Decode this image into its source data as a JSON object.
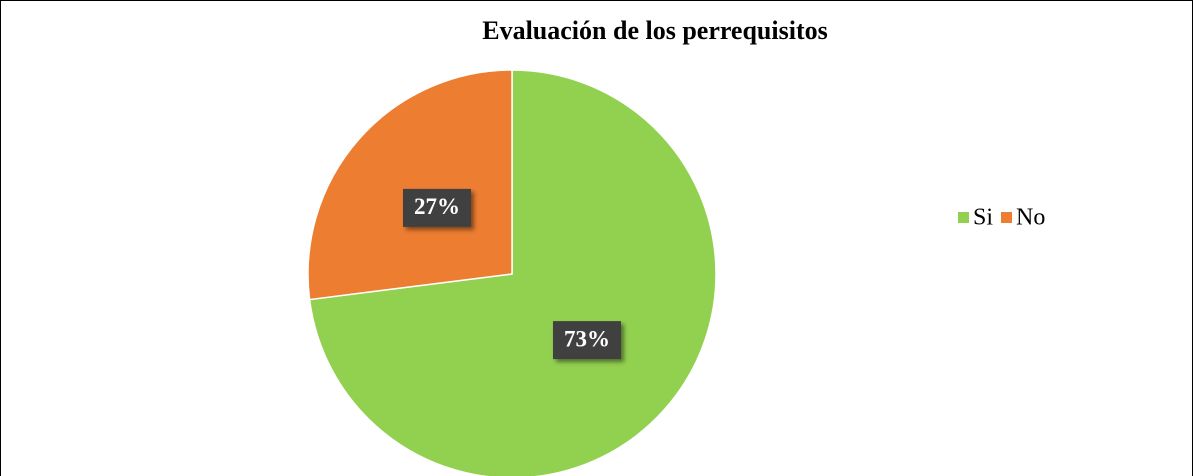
{
  "chart_data": {
    "type": "pie",
    "title": "Evaluación de los perrequisitos",
    "categories": [
      "Si",
      "No"
    ],
    "values": [
      73,
      27
    ],
    "value_labels": [
      "73%",
      "27%"
    ],
    "colors": [
      "#92d050",
      "#ed7d31"
    ],
    "legend": "right"
  }
}
